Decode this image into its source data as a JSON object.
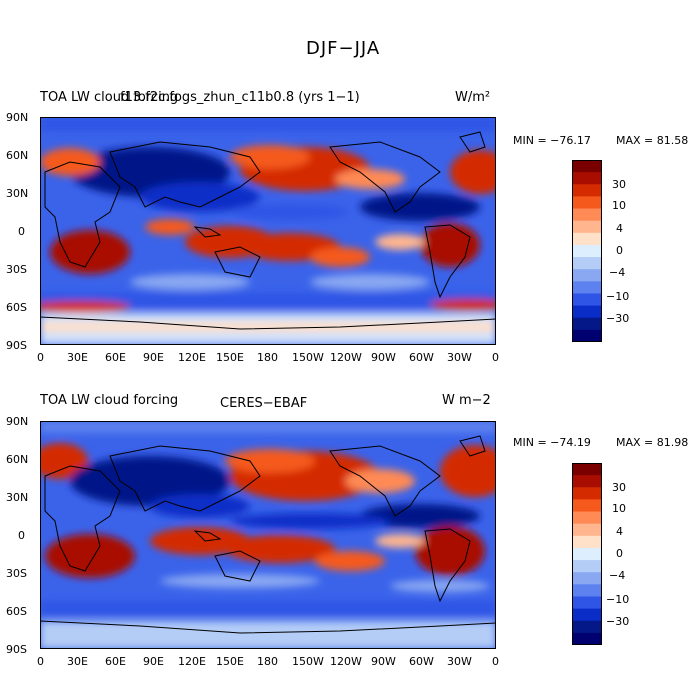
{
  "figure": {
    "title": "DJF−JJA"
  },
  "colorbar_levels": [
    "30",
    "10",
    "4",
    "0",
    "−4",
    "−10",
    "−30"
  ],
  "colors": [
    "#7a0000",
    "#a80d00",
    "#d42c00",
    "#f55a1c",
    "#ff8a55",
    "#ffb68e",
    "#ffe0c8",
    "#ddeeff",
    "#b4cdf7",
    "#8aa8f2",
    "#5d82ef",
    "#2f55e6",
    "#0a2dc7",
    "#041888",
    "#000070"
  ],
  "x_ticks": [
    "0",
    "30E",
    "60E",
    "90E",
    "120E",
    "150E",
    "180",
    "150W",
    "120W",
    "90W",
    "60W",
    "30W",
    "0"
  ],
  "y_ticks": [
    "90N",
    "60N",
    "30N",
    "0",
    "30S",
    "60S",
    "90S"
  ],
  "panels": [
    {
      "left_label": "TOA LW cloud forcing",
      "center_label": "f13.f2c.fogs_zhun_c11b0.8 (yrs 1−1)",
      "units": "W/m²",
      "min_label": "MIN = −76.17",
      "max_label": "MAX =  81.58"
    },
    {
      "left_label": "TOA LW cloud forcing",
      "center_label": "CERES−EBAF",
      "units": "W m−2",
      "min_label": "MIN = −74.19",
      "max_label": "MAX =  81.98"
    }
  ],
  "chart_data": [
    {
      "type": "heatmap",
      "title": "DJF−JJA",
      "variable": "TOA LW cloud forcing",
      "case": "f13.f2c.fogs_zhun_c11b0.8 (yrs 1−1)",
      "units": "W/m²",
      "min": -76.17,
      "max": 81.58,
      "x_range": [
        0,
        360
      ],
      "y_range": [
        -90,
        90
      ],
      "contour_levels": [
        30,
        10,
        4,
        0,
        -4,
        -10,
        -30
      ]
    },
    {
      "type": "heatmap",
      "title": "DJF−JJA",
      "variable": "TOA LW cloud forcing",
      "case": "CERES−EBAF",
      "units": "W m−2",
      "min": -74.19,
      "max": 81.98,
      "x_range": [
        0,
        360
      ],
      "y_range": [
        -90,
        90
      ],
      "contour_levels": [
        30,
        10,
        4,
        0,
        -4,
        -10,
        -30
      ]
    }
  ]
}
